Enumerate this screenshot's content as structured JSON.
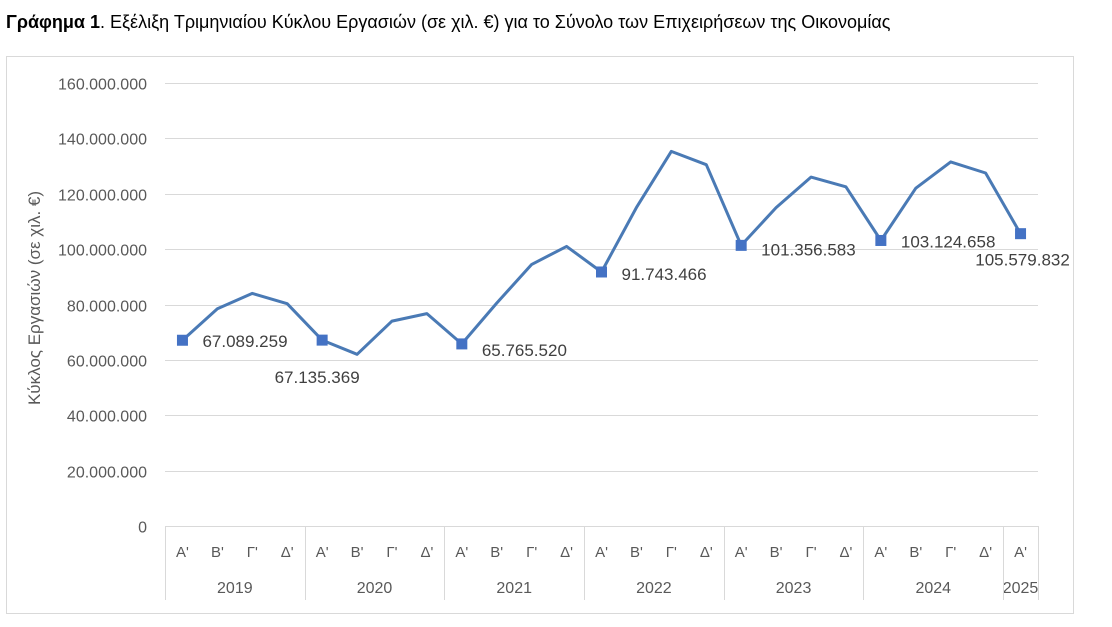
{
  "caption": {
    "bold": "Γράφημα 1",
    "rest": ". Εξέλιξη Τριμηνιαίου Κύκλου Εργασιών (σε χιλ. €) για το Σύνολο των Επιχειρήσεων της Οικονομίας"
  },
  "chart_data": {
    "type": "line",
    "ylabel": "Κύκλος Εργασιών (σε χιλ. €)",
    "ylim": [
      0,
      160000000
    ],
    "yticks": [
      0,
      20000000,
      40000000,
      60000000,
      80000000,
      100000000,
      120000000,
      140000000,
      160000000
    ],
    "ytick_labels": [
      "0",
      "20.000.000",
      "40.000.000",
      "60.000.000",
      "80.000.000",
      "100.000.000",
      "120.000.000",
      "140.000.000",
      "160.000.000"
    ],
    "grid": true,
    "legend": "none",
    "series_color": "#4a7ab5",
    "marker_color": "#4472c4",
    "years": [
      {
        "label": "2019",
        "quarters": [
          "Α'",
          "Β'",
          "Γ'",
          "Δ'"
        ]
      },
      {
        "label": "2020",
        "quarters": [
          "Α'",
          "Β'",
          "Γ'",
          "Δ'"
        ]
      },
      {
        "label": "2021",
        "quarters": [
          "Α'",
          "Β'",
          "Γ'",
          "Δ'"
        ]
      },
      {
        "label": "2022",
        "quarters": [
          "Α'",
          "Β'",
          "Γ'",
          "Δ'"
        ]
      },
      {
        "label": "2023",
        "quarters": [
          "Α'",
          "Β'",
          "Γ'",
          "Δ'"
        ]
      },
      {
        "label": "2024",
        "quarters": [
          "Α'",
          "Β'",
          "Γ'",
          "Δ'"
        ]
      },
      {
        "label": "2025",
        "quarters": [
          "Α'"
        ]
      }
    ],
    "values": [
      67089259,
      78500000,
      84000000,
      80300000,
      67135369,
      62000000,
      74000000,
      76700000,
      65765520,
      80500000,
      94500000,
      101000000,
      91743466,
      115000000,
      135300000,
      130500000,
      101356583,
      115000000,
      126000000,
      122500000,
      103124658,
      122000000,
      131500000,
      127500000,
      105579832
    ],
    "data_labels": [
      {
        "index": 0,
        "text": "67.089.259"
      },
      {
        "index": 4,
        "text": "67.135.369"
      },
      {
        "index": 8,
        "text": "65.765.520"
      },
      {
        "index": 12,
        "text": "91.743.466"
      },
      {
        "index": 16,
        "text": "101.356.583"
      },
      {
        "index": 20,
        "text": "103.124.658"
      },
      {
        "index": 24,
        "text": "105.579.832"
      }
    ]
  }
}
